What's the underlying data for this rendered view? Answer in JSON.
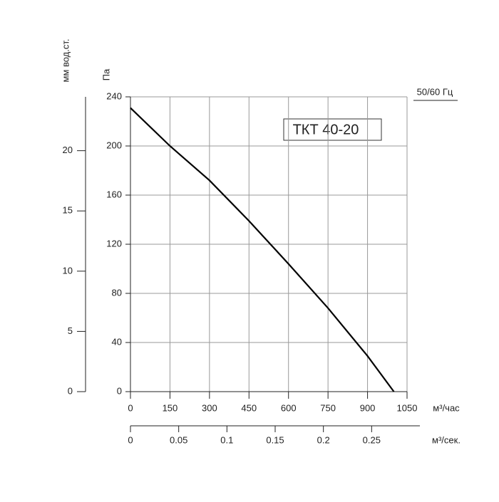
{
  "chart_data": {
    "type": "line",
    "annotation": "ТКТ 40-20",
    "frequency_label": "50/60 Гц",
    "xlabel": "м³/час",
    "ylabel": "Па",
    "y2label": "мм вод.ст.",
    "x2label": "м³/сек.",
    "x": [
      0,
      150,
      300,
      450,
      600,
      750,
      900,
      1000
    ],
    "values": [
      231,
      200,
      172,
      139,
      104,
      68,
      29,
      0
    ],
    "color": "#000000",
    "xlim": [
      0,
      1050
    ],
    "xticks": [
      0,
      150,
      300,
      450,
      600,
      750,
      900,
      1050
    ],
    "ylim": [
      0,
      240
    ],
    "yticks": [
      0,
      40,
      80,
      120,
      160,
      200,
      240
    ],
    "y2lim": [
      0,
      24.47
    ],
    "y2ticks": [
      0,
      5,
      10,
      15,
      20
    ],
    "x2lim": [
      0,
      0.3
    ],
    "x2ticks": [
      0,
      0.05,
      0.1,
      0.15,
      0.2,
      0.25
    ],
    "grid": true
  }
}
